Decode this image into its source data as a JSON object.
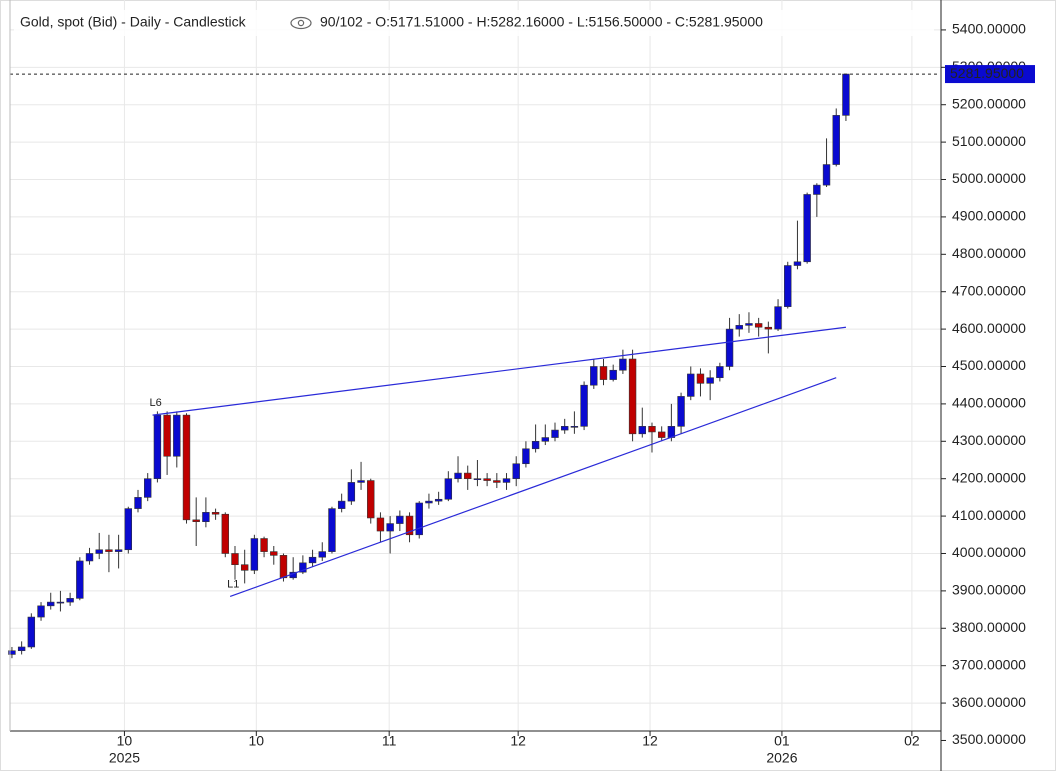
{
  "chart_data": {
    "type": "candlestick",
    "title": "Gold, spot (Bid) - Daily - Candlestick",
    "subtitle": "90/102 - O:5171.51000 - H:5282.16000 - L:5156.50000 - C:5281.95000",
    "up_color": "#0a0ad0",
    "down_color": "#c00000",
    "grid": true,
    "open": [
      3730,
      3740,
      3750,
      3830,
      3860,
      3870,
      3870,
      3880,
      3980,
      4000,
      4010,
      4005,
      4010,
      4120,
      4150,
      4200,
      4370,
      4260,
      4370,
      4090,
      4085,
      4110,
      4105,
      4000,
      3970,
      3955,
      4040,
      4005,
      3995,
      3935,
      3950,
      3975,
      3990,
      4005,
      4120,
      4140,
      4190,
      4195,
      4095,
      4060,
      4080,
      4100,
      4050,
      4135,
      4140,
      4145,
      4200,
      4215,
      4200,
      4200,
      4195,
      4190,
      4200,
      4240,
      4280,
      4300,
      4310,
      4330,
      4340,
      4340,
      4450,
      4500,
      4465,
      4490,
      4520,
      4320,
      4340,
      4325,
      4310,
      4340,
      4420,
      4480,
      4455,
      4470,
      4500,
      4600,
      4610,
      4615,
      4605,
      4600,
      4660,
      4770,
      4780,
      4960,
      4985,
      5040,
      5171.51
    ],
    "high": [
      3750,
      3765,
      3840,
      3870,
      3895,
      3900,
      3895,
      3990,
      4015,
      4055,
      4050,
      4050,
      4125,
      4170,
      4215,
      4380,
      4380,
      4380,
      4375,
      4150,
      4150,
      4120,
      4110,
      4020,
      4010,
      4050,
      4045,
      4020,
      4000,
      3990,
      3995,
      4010,
      4030,
      4125,
      4160,
      4225,
      4245,
      4200,
      4110,
      4100,
      4115,
      4110,
      4140,
      4160,
      4165,
      4220,
      4260,
      4235,
      4250,
      4215,
      4215,
      4215,
      4260,
      4300,
      4345,
      4345,
      4350,
      4360,
      4380,
      4460,
      4520,
      4520,
      4505,
      4545,
      4545,
      4390,
      4350,
      4340,
      4400,
      4430,
      4500,
      4495,
      4490,
      4510,
      4630,
      4640,
      4645,
      4630,
      4620,
      4680,
      4780,
      4890,
      4965,
      4990,
      5110,
      5190,
      5282.16
    ],
    "low": [
      3720,
      3730,
      3745,
      3820,
      3850,
      3845,
      3860,
      3875,
      3970,
      3985,
      3950,
      3960,
      4000,
      4110,
      4140,
      4190,
      4210,
      4230,
      4080,
      4020,
      4070,
      4090,
      3990,
      3930,
      3920,
      3945,
      3990,
      3970,
      3925,
      3930,
      3945,
      3965,
      3980,
      4000,
      4110,
      4130,
      4170,
      4080,
      4030,
      4000,
      4060,
      4030,
      4040,
      4120,
      4130,
      4140,
      4190,
      4170,
      4180,
      4180,
      4175,
      4170,
      4180,
      4230,
      4270,
      4290,
      4300,
      4320,
      4320,
      4330,
      4440,
      4450,
      4460,
      4480,
      4300,
      4310,
      4270,
      4300,
      4300,
      4320,
      4410,
      4420,
      4410,
      4460,
      4490,
      4580,
      4590,
      4580,
      4535,
      4595,
      4655,
      4760,
      4775,
      4900,
      4980,
      5035,
      5156.5
    ],
    "close": [
      3740,
      3750,
      3830,
      3860,
      3870,
      3870,
      3880,
      3980,
      4000,
      4010,
      4005,
      4010,
      4120,
      4150,
      4200,
      4370,
      4260,
      4370,
      4090,
      4085,
      4110,
      4105,
      4000,
      3970,
      3955,
      4040,
      4005,
      3995,
      3935,
      3950,
      3975,
      3990,
      4005,
      4120,
      4140,
      4190,
      4195,
      4095,
      4060,
      4080,
      4100,
      4050,
      4135,
      4140,
      4145,
      4200,
      4215,
      4200,
      4200,
      4195,
      4190,
      4200,
      4240,
      4280,
      4300,
      4310,
      4330,
      4340,
      4340,
      4450,
      4500,
      4465,
      4490,
      4520,
      4320,
      4340,
      4325,
      4310,
      4340,
      4420,
      4480,
      4455,
      4470,
      4500,
      4600,
      4610,
      4615,
      4605,
      4600,
      4660,
      4770,
      4780,
      4960,
      4985,
      5040,
      5171.51,
      5281.95
    ],
    "last_price_label": "5281.95000",
    "xlim": [
      -0.2,
      95.7
    ],
    "xticks": [
      {
        "value": 11.6,
        "label": "10"
      },
      {
        "value": 25.2,
        "label": "10"
      },
      {
        "value": 38.9,
        "label": "11"
      },
      {
        "value": 52.2,
        "label": "12"
      },
      {
        "value": 65.8,
        "label": "12"
      },
      {
        "value": 79.4,
        "label": "01"
      },
      {
        "value": 92.8,
        "label": "02"
      }
    ],
    "year_labels": [
      {
        "value": 11.6,
        "label": "2025"
      },
      {
        "value": 79.4,
        "label": "2026"
      }
    ],
    "ylim": [
      3528,
      5480
    ],
    "yticks": [
      {
        "value": 3500,
        "label": "3500.00000"
      },
      {
        "value": 3600,
        "label": "3600.00000"
      },
      {
        "value": 3700,
        "label": "3700.00000"
      },
      {
        "value": 3800,
        "label": "3800.00000"
      },
      {
        "value": 3900,
        "label": "3900.00000"
      },
      {
        "value": 4000,
        "label": "4000.00000"
      },
      {
        "value": 4100,
        "label": "4100.00000"
      },
      {
        "value": 4200,
        "label": "4200.00000"
      },
      {
        "value": 4300,
        "label": "4300.00000"
      },
      {
        "value": 4400,
        "label": "4400.00000"
      },
      {
        "value": 4500,
        "label": "4500.00000"
      },
      {
        "value": 4600,
        "label": "4600.00000"
      },
      {
        "value": 4700,
        "label": "4700.00000"
      },
      {
        "value": 4800,
        "label": "4800.00000"
      },
      {
        "value": 4900,
        "label": "4900.00000"
      },
      {
        "value": 5000,
        "label": "5000.00000"
      },
      {
        "value": 5100,
        "label": "5100.00000"
      },
      {
        "value": 5200,
        "label": "5200.00000"
      },
      {
        "value": 5300,
        "label": "5300.00000"
      },
      {
        "value": 5400,
        "label": "5400.00000"
      }
    ],
    "trendlines": [
      {
        "label": "L6",
        "x": [
          14.5,
          86
        ],
        "y": [
          4370,
          4605
        ],
        "color": "#2a2ad8"
      },
      {
        "label": "L1",
        "x": [
          22.5,
          85
        ],
        "y": [
          3885,
          4470
        ],
        "color": "#2a2ad8"
      }
    ]
  }
}
